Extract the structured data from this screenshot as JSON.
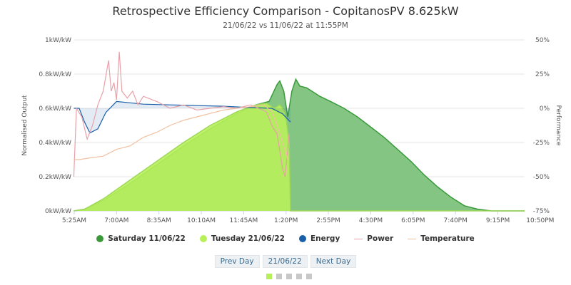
{
  "header": {
    "title": "Retrospective Efficiency Comparison - CopitanosPV 8.625kW",
    "subtitle": "21/06/22 vs 11/06/22 at 11:55PM"
  },
  "chart_data": {
    "type": "area",
    "title": "Retrospective Efficiency Comparison - CopitanosPV 8.625kW",
    "subtitle": "21/06/22 vs 11/06/22 at 11:55PM",
    "ylabel": "Normalised Output",
    "y2label": "Performance",
    "ylim": [
      0,
      1
    ],
    "y2lim": [
      -75,
      50
    ],
    "xlim_hours": [
      5.417,
      22.25
    ],
    "yticks": [
      "0kW/kW",
      "0.2kW/kW",
      "0.4kW/kW",
      "0.6kW/kW",
      "0.8kW/kW",
      "1kW/kW"
    ],
    "y2ticks": [
      "-75%",
      "-50%",
      "-25%",
      "0%",
      "25%",
      "50%"
    ],
    "xticks": [
      "5:25AM",
      "7:00AM",
      "8:35AM",
      "10:10AM",
      "11:45AM",
      "1:20PM",
      "2:55PM",
      "4:30PM",
      "6:05PM",
      "7:40PM",
      "9:15PM",
      "10:50PM"
    ],
    "series": [
      {
        "name": "Saturday 11/06/22",
        "color": "#3a9a3a",
        "fill": "#7dc27d",
        "axis": "left",
        "x": [
          5.4,
          5.8,
          6.5,
          7.5,
          8.5,
          9.5,
          10.5,
          11.5,
          12.2,
          12.7,
          13.0,
          13.1,
          13.25,
          13.4,
          13.55,
          13.7,
          13.85,
          14.1,
          14.3,
          14.6,
          15,
          15.5,
          16,
          16.5,
          17,
          17.5,
          18,
          18.5,
          19,
          19.5,
          20,
          20.5,
          21,
          22.25
        ],
        "y": [
          0,
          0.01,
          0.06,
          0.16,
          0.27,
          0.38,
          0.48,
          0.57,
          0.62,
          0.64,
          0.74,
          0.76,
          0.7,
          0.55,
          0.7,
          0.77,
          0.73,
          0.72,
          0.7,
          0.67,
          0.64,
          0.6,
          0.55,
          0.49,
          0.43,
          0.36,
          0.29,
          0.21,
          0.14,
          0.08,
          0.03,
          0.01,
          0,
          0
        ]
      },
      {
        "name": "Tuesday 21/06/22",
        "color": "#9ed85a",
        "fill": "#b8f05a",
        "axis": "left",
        "x": [
          5.4,
          5.8,
          6.5,
          7.5,
          8.5,
          9.5,
          10.5,
          11.5,
          12.2,
          12.6,
          12.9,
          13.1,
          13.3,
          13.45,
          13.5,
          22.25
        ],
        "y": [
          0,
          0.01,
          0.07,
          0.18,
          0.29,
          0.4,
          0.5,
          0.58,
          0.62,
          0.63,
          0.6,
          0.62,
          0.58,
          0.4,
          0,
          0
        ]
      },
      {
        "name": "Energy",
        "color": "#1a5fa8",
        "axis": "right",
        "x": [
          5.4,
          5.6,
          5.8,
          6,
          6.3,
          6.6,
          7,
          7.5,
          8,
          9,
          10,
          11,
          12,
          12.8,
          13.2,
          13.5
        ],
        "y": [
          0,
          0,
          -10,
          -18,
          -15,
          -3,
          5,
          4,
          3,
          2.5,
          2,
          1.5,
          0.5,
          0,
          -4,
          -10
        ]
      },
      {
        "name": "Power",
        "color": "#e8a0a8",
        "axis": "left",
        "x": [
          5.4,
          5.5,
          5.7,
          5.9,
          6.1,
          6.3,
          6.5,
          6.7,
          6.8,
          6.9,
          7.0,
          7.1,
          7.2,
          7.4,
          7.6,
          7.8,
          8,
          8.5,
          9,
          9.5,
          10,
          10.5,
          11,
          11.5,
          12,
          12.3,
          12.6,
          12.8,
          13.0,
          13.1,
          13.2,
          13.3,
          13.45
        ],
        "y": [
          0.2,
          0.6,
          0.55,
          0.42,
          0.5,
          0.62,
          0.7,
          0.88,
          0.7,
          0.75,
          0.65,
          0.93,
          0.7,
          0.66,
          0.7,
          0.62,
          0.67,
          0.64,
          0.6,
          0.62,
          0.59,
          0.6,
          0.61,
          0.6,
          0.62,
          0.6,
          0.58,
          0.5,
          0.45,
          0.35,
          0.25,
          0.2,
          0.45
        ]
      },
      {
        "name": "Temperature",
        "color": "#f0c0a0",
        "axis": "left",
        "x": [
          5.4,
          5.6,
          6,
          6.5,
          7,
          7.5,
          8,
          8.5,
          9,
          9.5,
          10,
          10.5,
          11,
          11.5,
          12,
          12.5,
          12.8,
          13.0,
          13.2,
          13.4
        ],
        "y": [
          0.3,
          0.3,
          0.31,
          0.32,
          0.36,
          0.38,
          0.43,
          0.46,
          0.5,
          0.53,
          0.55,
          0.57,
          0.59,
          0.6,
          0.61,
          0.62,
          0.58,
          0.5,
          0.4,
          0.3
        ]
      }
    ]
  },
  "legend": [
    {
      "label": "Saturday 11/06/22",
      "color": "#3a9a3a",
      "type": "dot"
    },
    {
      "label": "Tuesday 21/06/22",
      "color": "#b8f05a",
      "type": "dot"
    },
    {
      "label": "Energy",
      "color": "#1a5fa8",
      "type": "dot"
    },
    {
      "label": "Power",
      "color": "#e8a0a8",
      "type": "line"
    },
    {
      "label": "Temperature",
      "color": "#f0c0a0",
      "type": "line"
    }
  ],
  "nav": {
    "prev": "Prev Day",
    "date": "21/06/22",
    "next": "Next Day"
  }
}
